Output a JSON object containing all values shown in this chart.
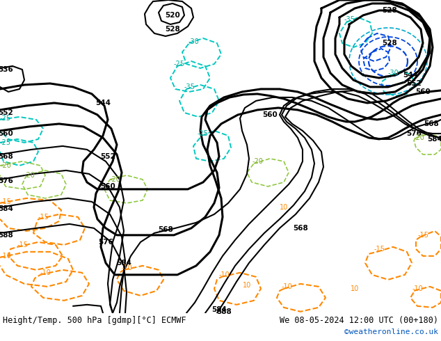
{
  "title_left": "Height/Temp. 500 hPa [gdmp][°C] ECMWF",
  "title_right": "We 08-05-2024 12:00 UTC (00+180)",
  "credit": "©weatheronline.co.uk",
  "ocean_color": "#cccccc",
  "land_color": "#b0dc90",
  "coast_color": "#999999",
  "footer_bg": "#ffffff"
}
